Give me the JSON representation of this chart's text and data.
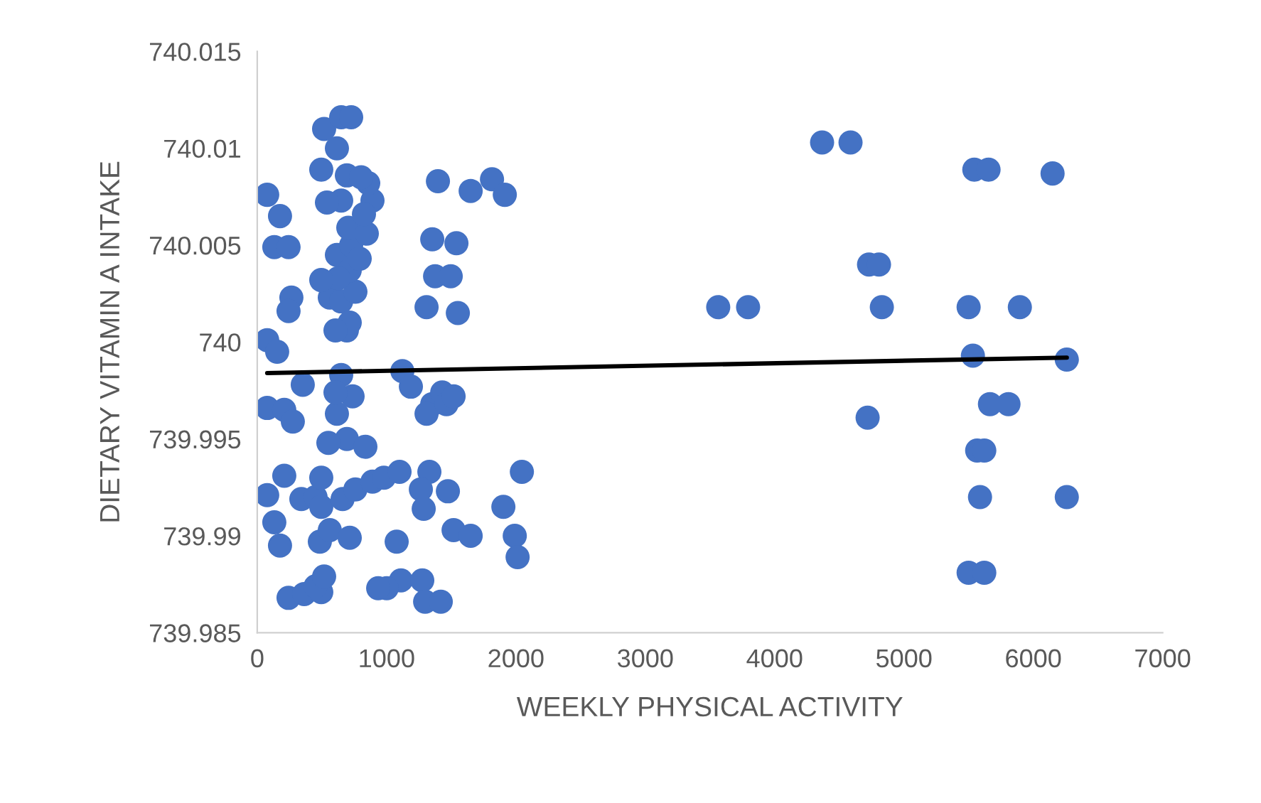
{
  "chart_data": {
    "type": "scatter",
    "xlabel": "WEEKLY PHYSICAL ACTIVITY",
    "ylabel": "DIETARY VITAMIN A INTAKE",
    "xlim": [
      0,
      7000
    ],
    "xticks": [
      0,
      1000,
      2000,
      3000,
      4000,
      5000,
      6000,
      7000
    ],
    "ylim": [
      739.985,
      740.015
    ],
    "yticks": [
      739.985,
      739.99,
      739.995,
      740,
      740.005,
      740.01,
      740.015
    ],
    "grid": false,
    "marker": "circle",
    "series": [
      {
        "color": "#4472c4",
        "x": [
          77,
          176,
          132,
          242,
          264,
          242,
          77,
          154,
          77,
          209,
          275,
          352,
          209,
          77,
          132,
          176,
          242,
          363,
          341,
          451,
          495,
          495,
          451,
          517,
          484,
          561,
          660,
          759,
          891,
          979,
          715,
          495,
          693,
          550,
          836,
          616,
          737,
          649,
          605,
          693,
          561,
          649,
          759,
          616,
          726,
          704,
          847,
          891,
          649,
          495,
          517,
          616,
          649,
          726,
          858,
          693,
          825,
          803,
          715,
          627,
          495,
          792,
          539,
          715,
          605,
          1122,
          1188,
          1309,
          1353,
          1309,
          1430,
          1463,
          1518,
          1551,
          1540,
          1353,
          1397,
          1375,
          1496,
          1650,
          1815,
          1914,
          1100,
          1111,
          1276,
          1078,
          1331,
          1265,
          1287,
          1474,
          1518,
          1650,
          1903,
          1991,
          2046,
          2013,
          1001,
          1298,
          1419,
          935,
          4367,
          4587,
          5544,
          5654,
          6149,
          4730,
          4807,
          3564,
          3795,
          4829,
          5500,
          5896,
          5533,
          6259,
          5808,
          5665,
          4719,
          5566,
          5621,
          5588,
          6259,
          5500,
          5621
        ],
        "values": [
          740.0076,
          740.0065,
          740.0049,
          740.0049,
          740.0023,
          740.0016,
          740.0001,
          739.9995,
          739.9966,
          739.9965,
          739.9959,
          739.9978,
          739.9931,
          739.9921,
          739.9907,
          739.9895,
          739.9868,
          739.987,
          739.9919,
          739.992,
          739.9915,
          739.9871,
          739.9874,
          739.9879,
          739.9897,
          739.9903,
          739.9919,
          739.9924,
          739.9928,
          739.993,
          739.9899,
          739.993,
          739.995,
          739.9948,
          739.9946,
          739.9963,
          739.9972,
          739.9983,
          739.9974,
          740.0006,
          740.0023,
          740.0021,
          740.0026,
          740.0045,
          740.005,
          740.0059,
          740.0056,
          740.0073,
          740.0073,
          740.0089,
          740.011,
          740.01,
          740.0116,
          740.0116,
          740.0082,
          740.0086,
          740.0066,
          740.0085,
          740.0037,
          740.0033,
          740.0032,
          740.0043,
          740.0072,
          740.001,
          740.0006,
          739.9985,
          739.9977,
          740.0018,
          739.9968,
          739.9963,
          739.9974,
          739.9968,
          739.9972,
          740.0015,
          740.0051,
          740.0053,
          740.0083,
          740.0034,
          740.0034,
          740.0078,
          740.0084,
          740.0076,
          739.9933,
          739.9877,
          739.9877,
          739.9897,
          739.9933,
          739.9924,
          739.9914,
          739.9923,
          739.9903,
          739.99,
          739.9915,
          739.99,
          739.9933,
          739.9889,
          739.9873,
          739.9866,
          739.9866,
          739.9873,
          740.0103,
          740.0103,
          740.0089,
          740.0089,
          740.0087,
          740.004,
          740.004,
          740.0018,
          740.0018,
          740.0018,
          740.0018,
          740.0018,
          739.9993,
          739.9991,
          739.9968,
          739.9968,
          739.9961,
          739.9944,
          739.9944,
          739.992,
          739.992,
          739.9881,
          739.9881
        ]
      },
      {
        "type": "line",
        "color": "#000000",
        "marker": "none",
        "x": [
          77,
          6259
        ],
        "values": [
          739.9984,
          739.9992
        ]
      }
    ]
  }
}
